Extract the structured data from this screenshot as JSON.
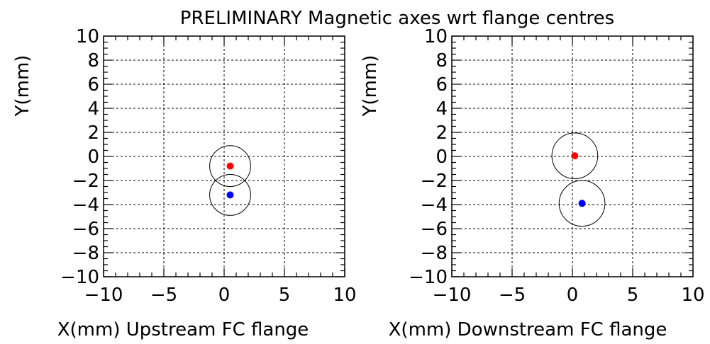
{
  "title": "PRELIMINARY Magnetic axes wrt flange centres",
  "colors": {
    "series_a": "#ff0000",
    "series_b": "#0000ff",
    "circle": "#000000",
    "grid": "#000000"
  },
  "chart_data": [
    {
      "type": "scatter",
      "xlabel": "X(mm) Upstream FC flange",
      "ylabel": "Y(mm)",
      "xlim": [
        -10,
        10
      ],
      "ylim": [
        -10,
        10
      ],
      "x_ticks": [
        -10,
        -5,
        0,
        5,
        10
      ],
      "y_ticks": [
        -10,
        -8,
        -6,
        -4,
        -2,
        0,
        2,
        4,
        6,
        8,
        10
      ],
      "x_tick_labels": [
        "−10",
        "−5",
        "0",
        "5",
        "10"
      ],
      "y_tick_labels": [
        "−10",
        "−8",
        "−6",
        "−4",
        "−2",
        "0",
        "2",
        "4",
        "6",
        "8",
        "10"
      ],
      "grid": true,
      "points": [
        {
          "x": 0.5,
          "y": -0.8,
          "color": "#ff0000",
          "circle_radius": 1.7
        },
        {
          "x": 0.5,
          "y": -3.2,
          "color": "#0000ff",
          "circle_radius": 1.7
        }
      ]
    },
    {
      "type": "scatter",
      "xlabel": "X(mm) Downstream FC flange",
      "ylabel": "Y(mm)",
      "xlim": [
        -10,
        10
      ],
      "ylim": [
        -10,
        10
      ],
      "x_ticks": [
        -10,
        -5,
        0,
        5,
        10
      ],
      "y_ticks": [
        -10,
        -8,
        -6,
        -4,
        -2,
        0,
        2,
        4,
        6,
        8,
        10
      ],
      "x_tick_labels": [
        "−10",
        "−5",
        "0",
        "5",
        "10"
      ],
      "y_tick_labels": [
        "−10",
        "−8",
        "−6",
        "−4",
        "−2",
        "0",
        "2",
        "4",
        "6",
        "8",
        "10"
      ],
      "grid": true,
      "points": [
        {
          "x": 0.2,
          "y": 0.05,
          "color": "#ff0000",
          "circle_radius": 1.9
        },
        {
          "x": 0.8,
          "y": -3.9,
          "color": "#0000ff",
          "circle_radius": 1.9
        }
      ]
    }
  ]
}
